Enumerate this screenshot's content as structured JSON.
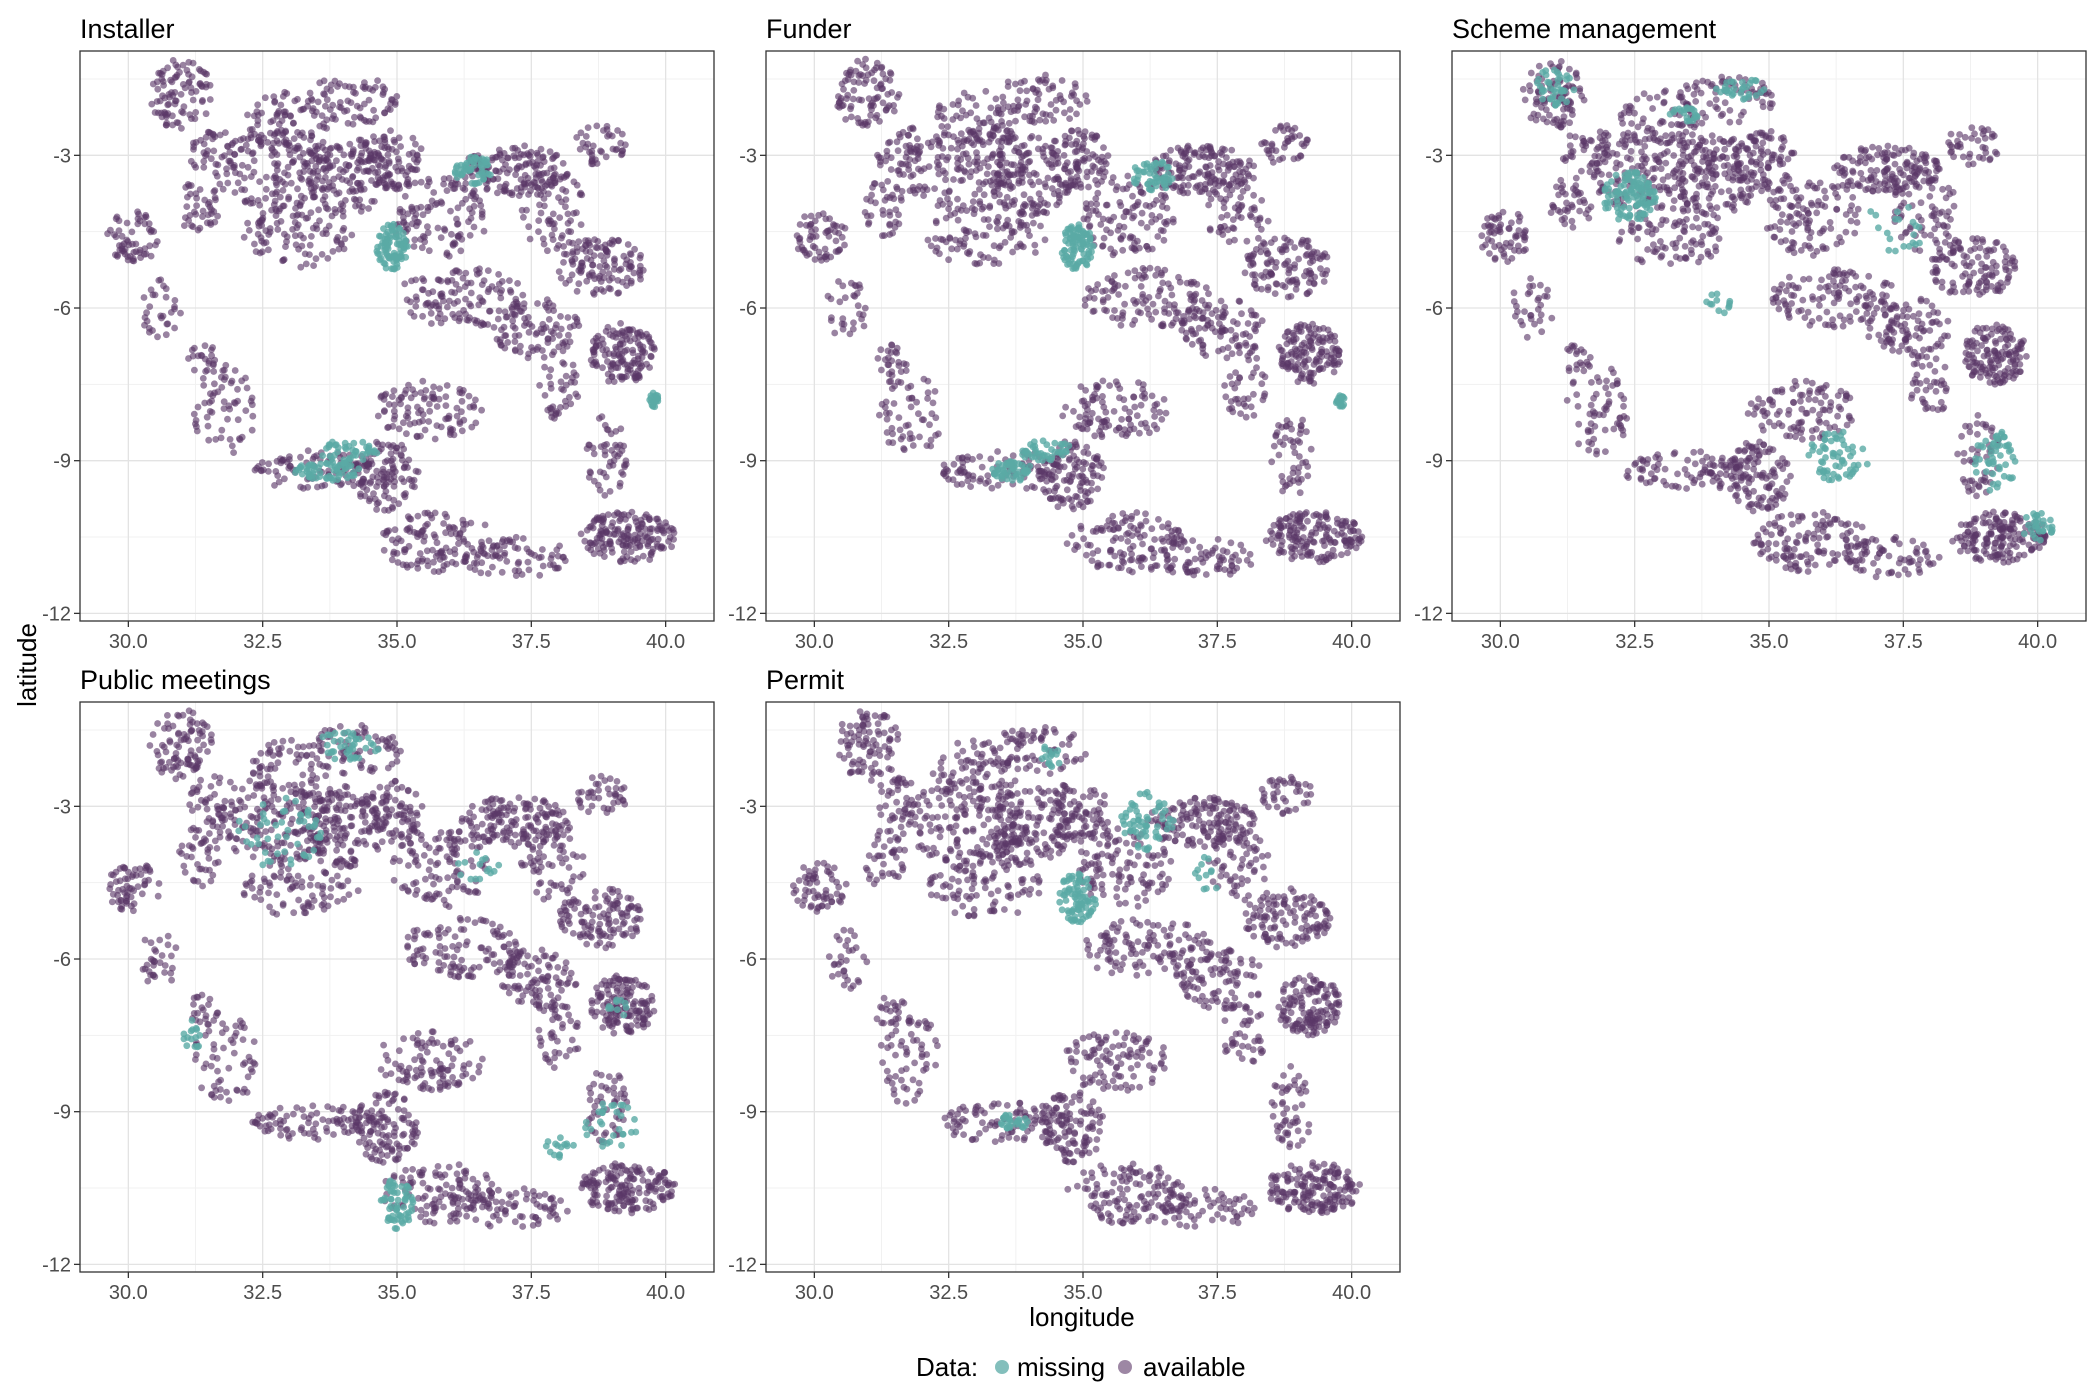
{
  "xlabel": "longitude",
  "ylabel": "latitude",
  "legend": {
    "title": "Data:",
    "placement": "bottom",
    "items": [
      {
        "label": "missing",
        "color": "#5aaaa5"
      },
      {
        "label": "available",
        "color": "#5b3768"
      }
    ]
  },
  "chart_data": {
    "type": "scatter",
    "facet_layout": "3 columns x 2 rows",
    "xlim": [
      29.1,
      40.9
    ],
    "ylim": [
      -12.15,
      -0.95
    ],
    "x_ticks": [
      30.0,
      32.5,
      35.0,
      37.5,
      40.0
    ],
    "x_tick_labels": [
      "30.0",
      "32.5",
      "35.0",
      "37.5",
      "40.0"
    ],
    "y_ticks": [
      -3,
      -6,
      -9,
      -12
    ],
    "y_tick_labels": [
      "-3",
      "-6",
      "-9",
      "-12"
    ],
    "grid": true,
    "colors": {
      "missing": "#5aaaa5",
      "available": "#5b3768"
    },
    "available_regions": [
      {
        "lon": 31.0,
        "lat": -1.8,
        "rx": 0.6,
        "ry": 0.7,
        "n": 90
      },
      {
        "lon": 31.6,
        "lat": -2.9,
        "rx": 0.5,
        "ry": 0.5,
        "n": 40
      },
      {
        "lon": 33.0,
        "lat": -2.3,
        "rx": 0.8,
        "ry": 0.6,
        "n": 70
      },
      {
        "lon": 32.8,
        "lat": -3.3,
        "rx": 1.2,
        "ry": 0.8,
        "n": 160
      },
      {
        "lon": 34.2,
        "lat": -1.9,
        "rx": 0.9,
        "ry": 0.5,
        "n": 70
      },
      {
        "lon": 34.0,
        "lat": -3.4,
        "rx": 0.8,
        "ry": 0.8,
        "n": 130
      },
      {
        "lon": 34.9,
        "lat": -3.1,
        "rx": 0.6,
        "ry": 0.6,
        "n": 90
      },
      {
        "lon": 33.2,
        "lat": -4.6,
        "rx": 1.1,
        "ry": 0.6,
        "n": 90
      },
      {
        "lon": 30.1,
        "lat": -4.6,
        "rx": 0.5,
        "ry": 0.5,
        "n": 60
      },
      {
        "lon": 31.3,
        "lat": -4.0,
        "rx": 0.4,
        "ry": 0.6,
        "n": 40
      },
      {
        "lon": 35.8,
        "lat": -4.2,
        "rx": 0.9,
        "ry": 0.8,
        "n": 110
      },
      {
        "lon": 37.2,
        "lat": -3.3,
        "rx": 1.0,
        "ry": 0.5,
        "n": 150
      },
      {
        "lon": 37.9,
        "lat": -4.1,
        "rx": 0.6,
        "ry": 0.8,
        "n": 60
      },
      {
        "lon": 38.8,
        "lat": -5.2,
        "rx": 0.8,
        "ry": 0.6,
        "n": 120
      },
      {
        "lon": 36.2,
        "lat": -5.8,
        "rx": 1.2,
        "ry": 0.6,
        "n": 120
      },
      {
        "lon": 37.6,
        "lat": -6.4,
        "rx": 0.8,
        "ry": 0.6,
        "n": 90
      },
      {
        "lon": 39.2,
        "lat": -6.9,
        "rx": 0.6,
        "ry": 0.6,
        "n": 140
      },
      {
        "lon": 38.0,
        "lat": -7.5,
        "rx": 0.4,
        "ry": 0.7,
        "n": 40
      },
      {
        "lon": 31.8,
        "lat": -8.0,
        "rx": 0.6,
        "ry": 0.9,
        "n": 60
      },
      {
        "lon": 33.5,
        "lat": -9.2,
        "rx": 1.2,
        "ry": 0.4,
        "n": 90
      },
      {
        "lon": 34.8,
        "lat": -9.3,
        "rx": 0.6,
        "ry": 0.7,
        "n": 110
      },
      {
        "lon": 35.6,
        "lat": -8.0,
        "rx": 1.0,
        "ry": 0.6,
        "n": 100
      },
      {
        "lon": 35.8,
        "lat": -10.6,
        "rx": 1.1,
        "ry": 0.6,
        "n": 120
      },
      {
        "lon": 37.2,
        "lat": -10.9,
        "rx": 1.0,
        "ry": 0.4,
        "n": 70
      },
      {
        "lon": 39.3,
        "lat": -10.5,
        "rx": 0.9,
        "ry": 0.5,
        "n": 170
      },
      {
        "lon": 38.9,
        "lat": -8.9,
        "rx": 0.4,
        "ry": 0.8,
        "n": 50
      },
      {
        "lon": 38.8,
        "lat": -2.8,
        "rx": 0.5,
        "ry": 0.4,
        "n": 40
      },
      {
        "lon": 30.6,
        "lat": -6.0,
        "rx": 0.4,
        "ry": 0.6,
        "n": 30
      },
      {
        "lon": 31.4,
        "lat": -7.0,
        "rx": 0.3,
        "ry": 0.3,
        "n": 20
      }
    ],
    "panels": [
      {
        "title": "Installer",
        "missing_regions": [
          {
            "lon": 34.9,
            "lat": -4.8,
            "rx": 0.3,
            "ry": 0.45,
            "n": 90
          },
          {
            "lon": 36.4,
            "lat": -3.3,
            "rx": 0.4,
            "ry": 0.3,
            "n": 50
          },
          {
            "lon": 33.7,
            "lat": -9.2,
            "rx": 0.6,
            "ry": 0.2,
            "n": 60
          },
          {
            "lon": 34.1,
            "lat": -8.8,
            "rx": 0.6,
            "ry": 0.2,
            "n": 40
          },
          {
            "lon": 39.8,
            "lat": -7.8,
            "rx": 0.1,
            "ry": 0.15,
            "n": 20
          }
        ]
      },
      {
        "title": "Funder",
        "missing_regions": [
          {
            "lon": 34.9,
            "lat": -4.8,
            "rx": 0.3,
            "ry": 0.45,
            "n": 90
          },
          {
            "lon": 36.3,
            "lat": -3.4,
            "rx": 0.4,
            "ry": 0.3,
            "n": 50
          },
          {
            "lon": 33.7,
            "lat": -9.2,
            "rx": 0.4,
            "ry": 0.2,
            "n": 50
          },
          {
            "lon": 34.3,
            "lat": -8.8,
            "rx": 0.5,
            "ry": 0.2,
            "n": 40
          },
          {
            "lon": 39.8,
            "lat": -7.8,
            "rx": 0.1,
            "ry": 0.15,
            "n": 20
          }
        ]
      },
      {
        "title": "Scheme management",
        "missing_regions": [
          {
            "lon": 32.4,
            "lat": -3.8,
            "rx": 0.5,
            "ry": 0.5,
            "n": 110
          },
          {
            "lon": 31.0,
            "lat": -1.7,
            "rx": 0.4,
            "ry": 0.4,
            "n": 40
          },
          {
            "lon": 34.5,
            "lat": -1.7,
            "rx": 0.5,
            "ry": 0.2,
            "n": 30
          },
          {
            "lon": 33.4,
            "lat": -2.2,
            "rx": 0.3,
            "ry": 0.15,
            "n": 20
          },
          {
            "lon": 36.3,
            "lat": -8.9,
            "rx": 0.6,
            "ry": 0.5,
            "n": 60
          },
          {
            "lon": 39.2,
            "lat": -9.0,
            "rx": 0.4,
            "ry": 0.6,
            "n": 50
          },
          {
            "lon": 40.0,
            "lat": -10.3,
            "rx": 0.3,
            "ry": 0.3,
            "n": 30
          },
          {
            "lon": 37.3,
            "lat": -4.4,
            "rx": 0.6,
            "ry": 0.6,
            "n": 20
          },
          {
            "lon": 34.1,
            "lat": -5.9,
            "rx": 0.3,
            "ry": 0.2,
            "n": 12
          }
        ]
      },
      {
        "title": "Public meetings",
        "missing_regions": [
          {
            "lon": 35.0,
            "lat": -10.8,
            "rx": 0.3,
            "ry": 0.5,
            "n": 60
          },
          {
            "lon": 34.1,
            "lat": -1.8,
            "rx": 0.6,
            "ry": 0.3,
            "n": 40
          },
          {
            "lon": 32.8,
            "lat": -3.5,
            "rx": 0.8,
            "ry": 0.7,
            "n": 50
          },
          {
            "lon": 39.0,
            "lat": -9.3,
            "rx": 0.5,
            "ry": 0.5,
            "n": 30
          },
          {
            "lon": 38.0,
            "lat": -9.7,
            "rx": 0.3,
            "ry": 0.2,
            "n": 15
          },
          {
            "lon": 31.2,
            "lat": -7.5,
            "rx": 0.2,
            "ry": 0.3,
            "n": 15
          },
          {
            "lon": 39.1,
            "lat": -7.0,
            "rx": 0.2,
            "ry": 0.2,
            "n": 10
          },
          {
            "lon": 36.5,
            "lat": -4.2,
            "rx": 0.4,
            "ry": 0.3,
            "n": 15
          }
        ]
      },
      {
        "title": "Permit",
        "missing_regions": [
          {
            "lon": 34.9,
            "lat": -4.8,
            "rx": 0.35,
            "ry": 0.5,
            "n": 80
          },
          {
            "lon": 36.2,
            "lat": -3.3,
            "rx": 0.5,
            "ry": 0.6,
            "n": 60
          },
          {
            "lon": 33.7,
            "lat": -9.2,
            "rx": 0.3,
            "ry": 0.15,
            "n": 25
          },
          {
            "lon": 34.4,
            "lat": -2.0,
            "rx": 0.2,
            "ry": 0.25,
            "n": 15
          },
          {
            "lon": 37.3,
            "lat": -4.3,
            "rx": 0.3,
            "ry": 0.4,
            "n": 12
          }
        ]
      }
    ]
  }
}
